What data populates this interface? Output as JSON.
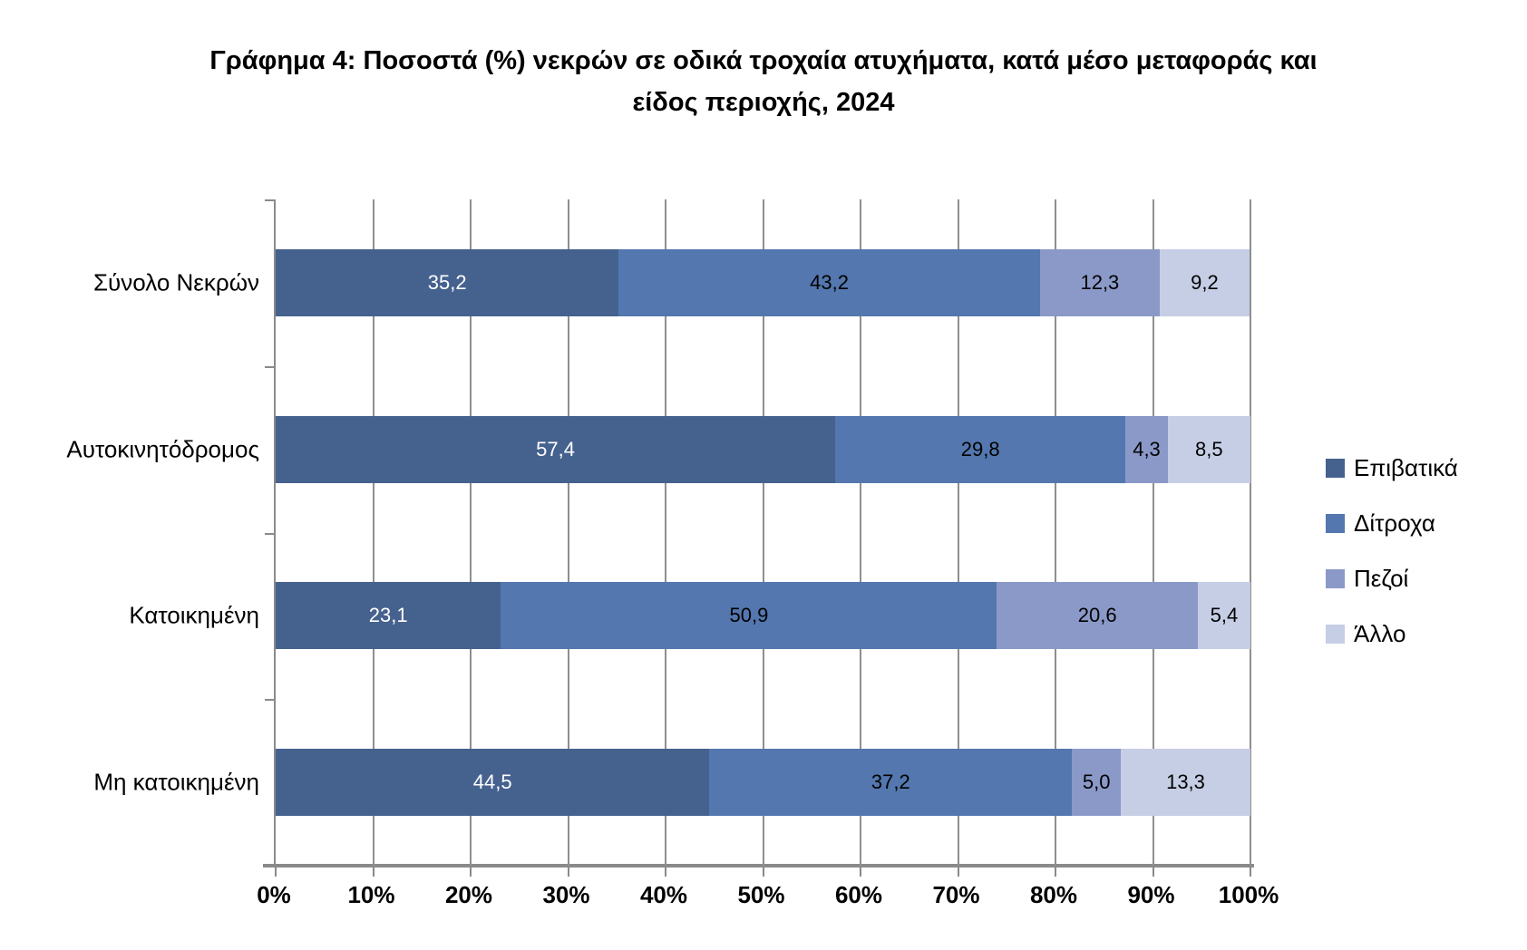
{
  "title": {
    "line1": "Γράφημα 4: Ποσοστά (%) νεκρών σε οδικά τροχαία ατυχήματα, κατά μέσο μεταφοράς και",
    "line2": "είδος περιοχής, 2024"
  },
  "chart_data": {
    "type": "bar",
    "stacked": true,
    "orientation": "horizontal",
    "title": "Γράφημα 4: Ποσοστά (%) νεκρών σε οδικά τροχαία ατυχήματα, κατά μέσο μεταφοράς και είδος περιοχής, 2024",
    "categories": [
      "Σύνολο Νεκρών",
      "Αυτοκινητόδρομος",
      "Κατοικημένη",
      "Μη κατοικημένη"
    ],
    "series": [
      {
        "name": "Επιβατικά",
        "color": "#45618E",
        "label_color": "#FFFFFF",
        "values": [
          35.2,
          57.4,
          23.1,
          44.5
        ],
        "labels": [
          "35,2",
          "57,4",
          "23,1",
          "44,5"
        ]
      },
      {
        "name": "Δίτροχα",
        "color": "#5377AE",
        "label_color": "#000000",
        "values": [
          43.2,
          29.8,
          50.9,
          37.2
        ],
        "labels": [
          "43,2",
          "29,8",
          "50,9",
          "37,2"
        ]
      },
      {
        "name": "Πεζοί",
        "color": "#8A99C8",
        "label_color": "#000000",
        "values": [
          12.3,
          4.3,
          20.6,
          5.0
        ],
        "labels": [
          "12,3",
          "4,3",
          "20,6",
          "5,0"
        ]
      },
      {
        "name": "Άλλο",
        "color": "#C5CEE4",
        "label_color": "#000000",
        "values": [
          9.2,
          8.5,
          5.4,
          13.3
        ],
        "labels": [
          "9,2",
          "8,5",
          "5,4",
          "13,3"
        ]
      }
    ],
    "x_ticks": [
      "0%",
      "10%",
      "20%",
      "30%",
      "40%",
      "50%",
      "60%",
      "70%",
      "80%",
      "90%",
      "100%"
    ],
    "xlim": [
      0,
      100
    ],
    "grid": true,
    "legend_position": "right"
  },
  "colors": {
    "axis": "#8A8A8A",
    "gridline": "#8F8F8F",
    "background": "#FFFFFF",
    "text": "#000000"
  }
}
